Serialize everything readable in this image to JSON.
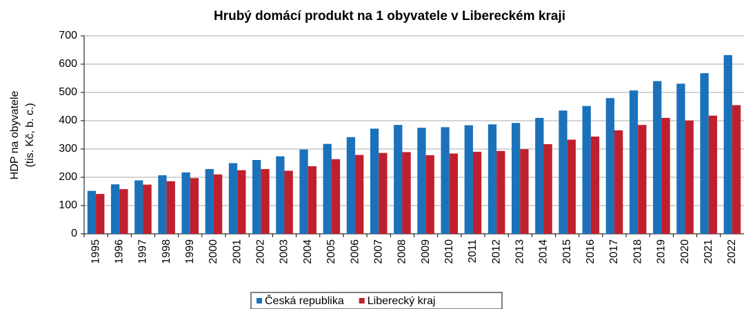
{
  "chart_data": {
    "type": "bar",
    "title": "Hrubý domácí produkt na 1 obyvatele v Libereckém kraji",
    "y_label": [
      "HDP na obyvatele",
      "(tis. Kč, b. c.)"
    ],
    "categories": [
      "1995",
      "1996",
      "1997",
      "1998",
      "1999",
      "2000",
      "2001",
      "2002",
      "2003",
      "2004",
      "2005",
      "2006",
      "2007",
      "2008",
      "2009",
      "2010",
      "2011",
      "2012",
      "2013",
      "2014",
      "2015",
      "2016",
      "2017",
      "2018",
      "2019",
      "2020",
      "2021",
      "2022"
    ],
    "series": [
      {
        "name": "Česká republika",
        "color": "#1b72bb",
        "values": [
          152,
          175,
          189,
          207,
          217,
          229,
          250,
          261,
          274,
          298,
          318,
          342,
          372,
          385,
          375,
          377,
          384,
          387,
          392,
          410,
          436,
          452,
          480,
          507,
          540,
          531,
          568,
          632
        ]
      },
      {
        "name": "Liberecký kraj",
        "color": "#c0202e",
        "values": [
          141,
          158,
          174,
          186,
          197,
          210,
          225,
          229,
          223,
          239,
          264,
          279,
          286,
          289,
          278,
          284,
          290,
          293,
          299,
          317,
          333,
          344,
          366,
          385,
          410,
          401,
          418,
          455
        ]
      }
    ],
    "ylim": [
      0,
      700
    ],
    "yticks": [
      0,
      100,
      200,
      300,
      400,
      500,
      600,
      700
    ],
    "grid": true,
    "legend": "bottom"
  }
}
